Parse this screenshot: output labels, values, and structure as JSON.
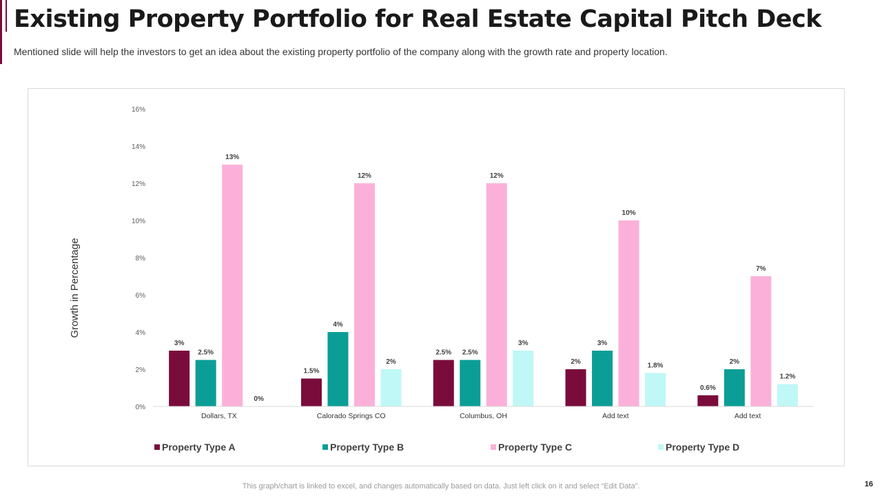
{
  "slide": {
    "title": "Existing Property Portfolio for Real Estate Capital Pitch Deck",
    "subtitle": "Mentioned slide will help the investors to get an idea about the existing property portfolio of the company along with the growth rate and property location.",
    "footer_note": "This graph/chart is linked to excel,  and changes automatically based on data. Just left click on it and select “Edit Data”.",
    "page_number": "16"
  },
  "chart_data": {
    "type": "bar",
    "title": "",
    "xlabel": "",
    "ylabel": "Growth in Percentage",
    "ylim": [
      0,
      16
    ],
    "y_ticks": [
      "0%",
      "2%",
      "4%",
      "6%",
      "8%",
      "10%",
      "12%",
      "14%",
      "16%"
    ],
    "grid": false,
    "legend_position": "bottom",
    "categories": [
      "Dollars, TX",
      "Calorado Springs CO",
      "Columbus, OH",
      "Add text",
      "Add text"
    ],
    "series": [
      {
        "name": "Property Type A",
        "color": "#7a0c3c",
        "values": [
          3,
          1.5,
          2.5,
          2,
          0.6
        ],
        "labels": [
          "3%",
          "1.5%",
          "2.5%",
          "2%",
          "0.6%"
        ]
      },
      {
        "name": "Property Type B",
        "color": "#0b9e96",
        "values": [
          2.5,
          4,
          2.5,
          3,
          2
        ],
        "labels": [
          "2.5%",
          "4%",
          "2.5%",
          "3%",
          "2%"
        ]
      },
      {
        "name": "Property Type C",
        "color": "#fbb0d9",
        "values": [
          13,
          12,
          12,
          10,
          7
        ],
        "labels": [
          "13%",
          "12%",
          "12%",
          "10%",
          "7%"
        ]
      },
      {
        "name": "Property Type D",
        "color": "#bff8f6",
        "values": [
          0,
          2,
          3,
          1.8,
          1.2
        ],
        "labels": [
          "0%",
          "2%",
          "3%",
          "1.8%",
          "1.2%"
        ]
      }
    ]
  }
}
